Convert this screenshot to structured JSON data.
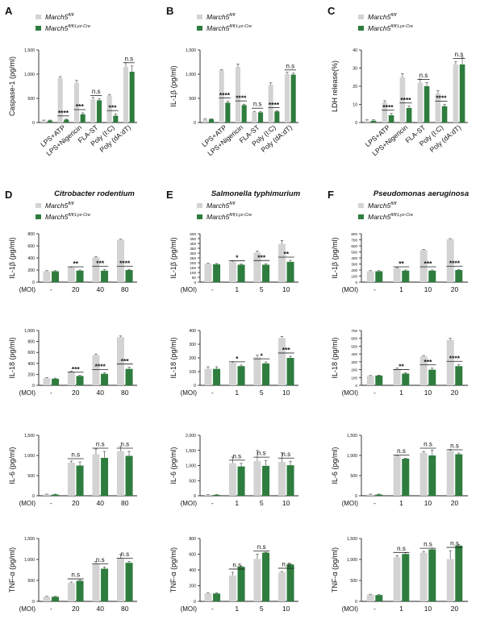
{
  "colors": {
    "control": "#d3d3d3",
    "knockout": "#2e7d3e",
    "axis": "#222222"
  },
  "legend": {
    "control": "March5",
    "control_sup": "fl/fl",
    "knockout": "March5",
    "knockout_sup": "fl/fl;Lyz-Cre"
  },
  "chart_data": [
    {
      "id": "A",
      "panel_letter": "A",
      "title": "",
      "ylabel": "Caspase-1 (pg/ml)",
      "type": "bar",
      "ylim": [
        0,
        1500
      ],
      "yticks": [
        "0",
        "500",
        "1,000",
        "1,500"
      ],
      "ytick_values": [
        0,
        500,
        1000,
        1500
      ],
      "x_prefix": "",
      "categories": [
        "",
        "LPS+ATP",
        "LPS+Nigericin",
        "FLA-ST",
        "Poly (I:C)",
        "Poly (dA:dT)"
      ],
      "rotated_labels": true,
      "series": [
        {
          "name": "March5 fl/fl",
          "values": [
            40,
            920,
            820,
            480,
            560,
            1150
          ],
          "errors": [
            10,
            30,
            50,
            40,
            20,
            90
          ]
        },
        {
          "name": "March5 fl/fl;Lyz-Cre",
          "values": [
            40,
            60,
            170,
            460,
            140,
            1050
          ],
          "errors": [
            10,
            10,
            30,
            30,
            40,
            120
          ]
        }
      ],
      "significance": [
        "",
        "****",
        "***",
        "n.s",
        "***",
        "n.s"
      ]
    },
    {
      "id": "B",
      "panel_letter": "B",
      "title": "",
      "ylabel": "IL-1β (pg/ml)",
      "type": "bar",
      "ylim": [
        0,
        1500
      ],
      "yticks": [
        "0",
        "500",
        "1,000",
        "1,500"
      ],
      "ytick_values": [
        0,
        500,
        1000,
        1500
      ],
      "x_prefix": "",
      "categories": [
        "",
        "LPS+ATP",
        "LPS+Nigericin",
        "FLA-ST",
        "Poly (I:C)",
        "Poly (dA:dT)"
      ],
      "rotated_labels": true,
      "series": [
        {
          "name": "March5 fl/fl",
          "values": [
            70,
            1080,
            1150,
            210,
            780,
            1000
          ],
          "errors": [
            10,
            10,
            60,
            20,
            40,
            40
          ]
        },
        {
          "name": "March5 fl/fl;Lyz-Cre",
          "values": [
            70,
            410,
            360,
            210,
            230,
            990
          ],
          "errors": [
            10,
            30,
            20,
            20,
            10,
            30
          ]
        }
      ],
      "significance": [
        "",
        "****",
        "****",
        "n.s",
        "****",
        "n.s"
      ]
    },
    {
      "id": "C",
      "panel_letter": "C",
      "title": "",
      "ylabel": "LDH release(%)",
      "type": "bar",
      "ylim": [
        0,
        40
      ],
      "yticks": [
        "0",
        "10",
        "20",
        "30",
        "40"
      ],
      "ytick_values": [
        0,
        10,
        20,
        30,
        40
      ],
      "x_prefix": "",
      "categories": [
        "",
        "LPS+ATP",
        "LPS+Nigericin",
        "FLA-ST",
        "Poly (I:C)",
        "Poly (dA:dT)"
      ],
      "rotated_labels": true,
      "series": [
        {
          "name": "March5 fl/fl",
          "values": [
            1,
            11,
            25,
            22,
            16,
            32
          ],
          "errors": [
            0.5,
            1,
            2,
            2,
            1.5,
            1.5
          ]
        },
        {
          "name": "March5 fl/fl;Lyz-Cre",
          "values": [
            1,
            4,
            8,
            20,
            9,
            32
          ],
          "errors": [
            0.5,
            1,
            1,
            2,
            1,
            4
          ]
        }
      ],
      "significance": [
        "",
        "****",
        "****",
        "n.s",
        "****",
        "n.s"
      ]
    },
    {
      "id": "D1",
      "panel_letter": "D",
      "title": "Citrobacter rodentium",
      "ylabel": "IL-1β (pg/ml)",
      "type": "bar",
      "ylim": [
        0,
        800
      ],
      "yticks": [
        "0",
        "200",
        "400",
        "600",
        "800"
      ],
      "ytick_values": [
        0,
        200,
        400,
        600,
        800
      ],
      "x_prefix": "(MOI)",
      "categories": [
        "-",
        "20",
        "40",
        "80"
      ],
      "rotated_labels": false,
      "series": [
        {
          "name": "March5 fl/fl",
          "values": [
            180,
            240,
            410,
            700
          ],
          "errors": [
            10,
            10,
            10,
            10
          ]
        },
        {
          "name": "March5 fl/fl;Lyz-Cre",
          "values": [
            180,
            190,
            190,
            200
          ],
          "errors": [
            10,
            10,
            20,
            10
          ]
        }
      ],
      "significance": [
        "",
        "**",
        "***",
        "****"
      ]
    },
    {
      "id": "E1",
      "panel_letter": "E",
      "title": "Salmonella typhimurium",
      "ylabel": "IL-1β (pg/ml)",
      "type": "bar",
      "ylim": [
        0,
        500
      ],
      "yticks": [
        "0",
        "50",
        "100",
        "150",
        "200",
        "250",
        "300",
        "350",
        "400",
        "450",
        "500"
      ],
      "ytick_values": [
        0,
        50,
        100,
        150,
        200,
        250,
        300,
        350,
        400,
        450,
        500
      ],
      "x_prefix": "(MOI)",
      "categories": [
        "-",
        "1",
        "5",
        "10"
      ],
      "rotated_labels": false,
      "series": [
        {
          "name": "March5 fl/fl",
          "values": [
            190,
            210,
            305,
            395
          ],
          "errors": [
            5,
            8,
            15,
            35
          ]
        },
        {
          "name": "March5 fl/fl;Lyz-Cre",
          "values": [
            185,
            180,
            180,
            210
          ],
          "errors": [
            8,
            8,
            10,
            15
          ]
        }
      ],
      "significance": [
        "",
        "*",
        "***",
        "**"
      ]
    },
    {
      "id": "F1",
      "panel_letter": "F",
      "title": "Pseudomonas aeruginosa",
      "ylabel": "IL-1β (pg/ml)",
      "type": "bar",
      "ylim": [
        0,
        800
      ],
      "yticks": [
        "0",
        "100",
        "200",
        "300",
        "400",
        "500",
        "600",
        "700",
        "800"
      ],
      "ytick_values": [
        0,
        100,
        200,
        300,
        400,
        500,
        600,
        700,
        800
      ],
      "x_prefix": "(MOI)",
      "categories": [
        "-",
        "1",
        "10",
        "20"
      ],
      "rotated_labels": false,
      "series": [
        {
          "name": "March5 fl/fl",
          "values": [
            180,
            230,
            530,
            710
          ],
          "errors": [
            10,
            10,
            10,
            10
          ]
        },
        {
          "name": "March5 fl/fl;Lyz-Cre",
          "values": [
            180,
            190,
            190,
            200
          ],
          "errors": [
            10,
            10,
            10,
            10
          ]
        }
      ],
      "significance": [
        "",
        "**",
        "***",
        "****"
      ]
    },
    {
      "id": "D2",
      "panel_letter": "",
      "title": "",
      "ylabel": "IL-18 (pg/ml)",
      "type": "bar",
      "ylim": [
        0,
        1000
      ],
      "yticks": [
        "0",
        "200",
        "400",
        "600",
        "800",
        "1,000"
      ],
      "ytick_values": [
        0,
        200,
        400,
        600,
        800,
        1000
      ],
      "x_prefix": "(MOI)",
      "categories": [
        "-",
        "20",
        "40",
        "80"
      ],
      "rotated_labels": false,
      "series": [
        {
          "name": "March5 fl/fl",
          "values": [
            130,
            250,
            550,
            880
          ],
          "errors": [
            10,
            10,
            20,
            20
          ]
        },
        {
          "name": "March5 fl/fl;Lyz-Cre",
          "values": [
            120,
            170,
            210,
            300
          ],
          "errors": [
            10,
            10,
            20,
            30
          ]
        }
      ],
      "significance": [
        "",
        "***",
        "****",
        "***"
      ]
    },
    {
      "id": "E2",
      "panel_letter": "",
      "title": "",
      "ylabel": "IL-18 (pg/ml)",
      "type": "bar",
      "ylim": [
        0,
        400
      ],
      "yticks": [
        "0",
        "100",
        "200",
        "300",
        "400"
      ],
      "ytick_values": [
        0,
        100,
        200,
        300,
        400
      ],
      "x_prefix": "(MOI)",
      "categories": [
        "-",
        "1",
        "5",
        "10"
      ],
      "rotated_labels": false,
      "series": [
        {
          "name": "March5 fl/fl",
          "values": [
            120,
            165,
            205,
            345
          ],
          "errors": [
            15,
            8,
            15,
            12
          ]
        },
        {
          "name": "March5 fl/fl;Lyz-Cre",
          "values": [
            120,
            140,
            160,
            200
          ],
          "errors": [
            15,
            8,
            10,
            12
          ]
        }
      ],
      "significance": [
        "",
        "*",
        "*",
        "***"
      ]
    },
    {
      "id": "F2",
      "panel_letter": "",
      "title": "",
      "ylabel": "IL-18 (pg/ml)",
      "type": "bar",
      "ylim": [
        0,
        700
      ],
      "yticks": [
        "0",
        "100",
        "200",
        "300",
        "400",
        "500",
        "600",
        "700"
      ],
      "ytick_values": [
        0,
        100,
        200,
        300,
        400,
        500,
        600,
        700
      ],
      "x_prefix": "(MOI)",
      "categories": [
        "-",
        "1",
        "10",
        "20"
      ],
      "rotated_labels": false,
      "series": [
        {
          "name": "March5 fl/fl",
          "values": [
            120,
            210,
            370,
            580
          ],
          "errors": [
            5,
            10,
            10,
            20
          ]
        },
        {
          "name": "March5 fl/fl;Lyz-Cre",
          "values": [
            125,
            150,
            200,
            245
          ],
          "errors": [
            5,
            10,
            20,
            20
          ]
        }
      ],
      "significance": [
        "",
        "**",
        "***",
        "****"
      ]
    },
    {
      "id": "D3",
      "panel_letter": "",
      "title": "",
      "ylabel": "IL-6 (pg/ml)",
      "type": "bar",
      "ylim": [
        0,
        1500
      ],
      "yticks": [
        "0",
        "500",
        "1,000",
        "1,500"
      ],
      "ytick_values": [
        0,
        500,
        1000,
        1500
      ],
      "x_prefix": "(MOI)",
      "categories": [
        "-",
        "20",
        "40",
        "80"
      ],
      "rotated_labels": false,
      "series": [
        {
          "name": "March5 fl/fl",
          "values": [
            30,
            820,
            1030,
            1110
          ],
          "errors": [
            10,
            40,
            130,
            110
          ]
        },
        {
          "name": "March5 fl/fl;Lyz-Cre",
          "values": [
            30,
            750,
            940,
            990
          ],
          "errors": [
            10,
            90,
            160,
            110
          ]
        }
      ],
      "significance": [
        "",
        "n.s",
        "n.s",
        "n.s"
      ]
    },
    {
      "id": "E3",
      "panel_letter": "",
      "title": "",
      "ylabel": "IL-6 (pg/ml)",
      "type": "bar",
      "ylim": [
        0,
        2000
      ],
      "yticks": [
        "0",
        "500",
        "1,000",
        "1,500",
        "2,000"
      ],
      "ytick_values": [
        0,
        500,
        1000,
        1500,
        2000
      ],
      "x_prefix": "(MOI)",
      "categories": [
        "-",
        "1",
        "5",
        "10"
      ],
      "rotated_labels": false,
      "series": [
        {
          "name": "March5 fl/fl",
          "values": [
            30,
            1080,
            1150,
            1120
          ],
          "errors": [
            10,
            200,
            350,
            300
          ]
        },
        {
          "name": "March5 fl/fl;Lyz-Cre",
          "values": [
            30,
            970,
            990,
            1010
          ],
          "errors": [
            10,
            100,
            180,
            130
          ]
        }
      ],
      "significance": [
        "",
        "n.s",
        "n.s",
        "n.s"
      ]
    },
    {
      "id": "F3",
      "panel_letter": "",
      "title": "",
      "ylabel": "IL-6 (pg/ml)",
      "type": "bar",
      "ylim": [
        0,
        1500
      ],
      "yticks": [
        "0",
        "500",
        "1,000",
        "1,500"
      ],
      "ytick_values": [
        0,
        500,
        1000,
        1500
      ],
      "x_prefix": "(MOI)",
      "categories": [
        "-",
        "1",
        "10",
        "20"
      ],
      "rotated_labels": false,
      "series": [
        {
          "name": "March5 fl/fl",
          "values": [
            30,
            990,
            1070,
            1110
          ],
          "errors": [
            10,
            10,
            30,
            40
          ]
        },
        {
          "name": "March5 fl/fl;Lyz-Cre",
          "values": [
            30,
            920,
            1000,
            1030
          ],
          "errors": [
            10,
            10,
            130,
            30
          ]
        }
      ],
      "significance": [
        "",
        "n.s",
        "n.s",
        "n.s"
      ]
    },
    {
      "id": "D4",
      "panel_letter": "",
      "title": "",
      "ylabel": "TNF-α (pg/ml)",
      "type": "bar",
      "ylim": [
        0,
        1500
      ],
      "yticks": [
        "0",
        "500",
        "1,000",
        "1,500"
      ],
      "ytick_values": [
        0,
        500,
        1000,
        1500
      ],
      "x_prefix": "(MOI)",
      "categories": [
        "-",
        "20",
        "40",
        "80"
      ],
      "rotated_labels": false,
      "series": [
        {
          "name": "March5 fl/fl",
          "values": [
            110,
            440,
            890,
            1040
          ],
          "errors": [
            10,
            20,
            60,
            80
          ]
        },
        {
          "name": "March5 fl/fl;Lyz-Cre",
          "values": [
            110,
            490,
            780,
            920
          ],
          "errors": [
            10,
            20,
            40,
            30
          ]
        }
      ],
      "significance": [
        "",
        "n.s",
        "n.s",
        "n.s"
      ]
    },
    {
      "id": "E4",
      "panel_letter": "",
      "title": "",
      "ylabel": "TNF-α (pg/ml)",
      "type": "bar",
      "ylim": [
        0,
        800
      ],
      "yticks": [
        "0",
        "200",
        "400",
        "600",
        "800"
      ],
      "ytick_values": [
        0,
        200,
        400,
        600,
        800
      ],
      "x_prefix": "(MOI)",
      "categories": [
        "-",
        "1",
        "5",
        "10"
      ],
      "rotated_labels": false,
      "series": [
        {
          "name": "March5 fl/fl",
          "values": [
            100,
            330,
            540,
            370
          ],
          "errors": [
            8,
            40,
            60,
            10
          ]
        },
        {
          "name": "March5 fl/fl;Lyz-Cre",
          "values": [
            100,
            440,
            620,
            470
          ],
          "errors": [
            8,
            10,
            5,
            10
          ]
        }
      ],
      "significance": [
        "",
        "n.s",
        "n.s",
        "n.s"
      ]
    },
    {
      "id": "F4",
      "panel_letter": "",
      "title": "",
      "ylabel": "TNF-α (pg/ml)",
      "type": "bar",
      "ylim": [
        0,
        1500
      ],
      "yticks": [
        "0",
        "500",
        "1,000",
        "1,500"
      ],
      "ytick_values": [
        0,
        500,
        1000,
        1500
      ],
      "x_prefix": "(MOI)",
      "categories": [
        "-",
        "1",
        "10",
        "20"
      ],
      "rotated_labels": false,
      "series": [
        {
          "name": "March5 fl/fl",
          "values": [
            160,
            1050,
            1160,
            1010
          ],
          "errors": [
            10,
            40,
            30,
            200
          ]
        },
        {
          "name": "March5 fl/fl;Lyz-Cre",
          "values": [
            150,
            1130,
            1240,
            1330
          ],
          "errors": [
            10,
            30,
            30,
            20
          ]
        }
      ],
      "significance": [
        "",
        "n.s",
        "n.s",
        "n.s"
      ]
    }
  ]
}
